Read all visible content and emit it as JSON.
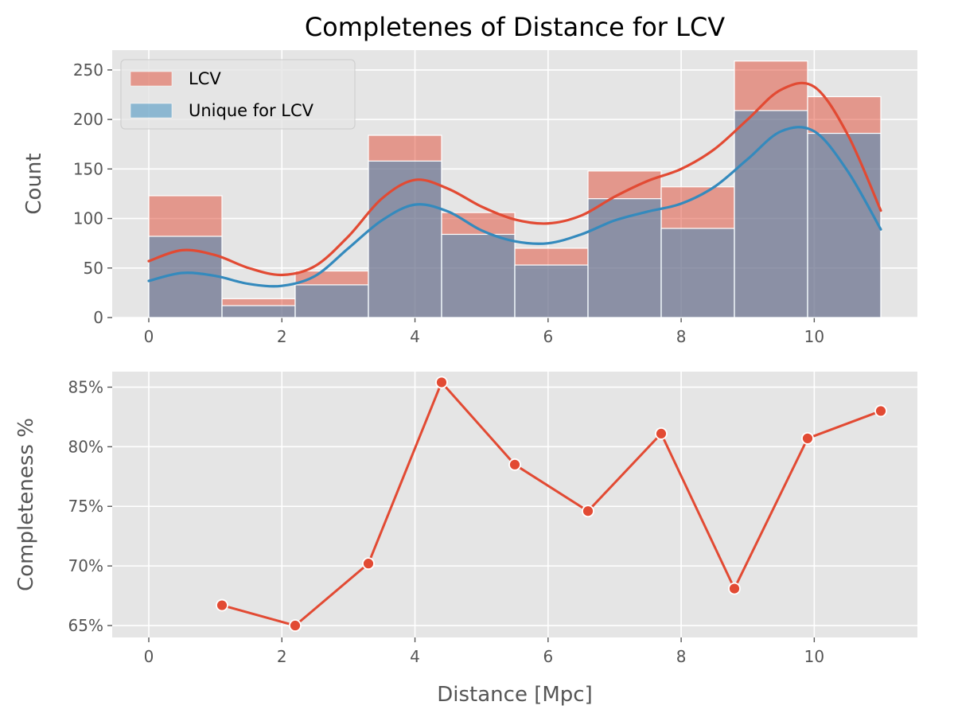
{
  "chart_data": [
    {
      "type": "bar",
      "title": "Completenes of Distance for LCV",
      "xlabel": "",
      "ylabel": "Count",
      "xlim": [
        -0.55,
        11.55
      ],
      "ylim": [
        0,
        270
      ],
      "grid": true,
      "legend_position": "top-left",
      "x_ticks": [
        0,
        2,
        4,
        6,
        8,
        10
      ],
      "x_tick_labels": [
        "0",
        "2",
        "4",
        "6",
        "8",
        "10"
      ],
      "y_ticks": [
        0,
        50,
        100,
        150,
        200,
        250
      ],
      "y_tick_labels": [
        "0",
        "50",
        "100",
        "150",
        "200",
        "250"
      ],
      "bin_edges": [
        0,
        1.1,
        2.2,
        3.3,
        4.4,
        5.5,
        6.6,
        7.7,
        8.8,
        9.9,
        11
      ],
      "series": [
        {
          "name": "LCV",
          "color": "#E24A33",
          "values": [
            123,
            19,
            47,
            184,
            106,
            70,
            148,
            132,
            259,
            223
          ],
          "kde": [
            [
              0,
              57
            ],
            [
              0.5,
              68
            ],
            [
              1,
              63
            ],
            [
              1.5,
              50
            ],
            [
              2,
              43
            ],
            [
              2.5,
              52
            ],
            [
              3,
              82
            ],
            [
              3.5,
              120
            ],
            [
              4,
              139
            ],
            [
              4.5,
              130
            ],
            [
              5,
              112
            ],
            [
              5.5,
              99
            ],
            [
              6,
              95
            ],
            [
              6.5,
              103
            ],
            [
              7,
              122
            ],
            [
              7.5,
              138
            ],
            [
              8,
              150
            ],
            [
              8.5,
              170
            ],
            [
              9,
              200
            ],
            [
              9.5,
              230
            ],
            [
              10,
              233
            ],
            [
              10.5,
              185
            ],
            [
              11,
              108
            ]
          ]
        },
        {
          "name": "Unique for LCV",
          "color": "#348ABD",
          "values": [
            82,
            12,
            33,
            158,
            84,
            53,
            120,
            90,
            209,
            186
          ],
          "kde": [
            [
              0,
              37
            ],
            [
              0.5,
              45
            ],
            [
              1,
              42
            ],
            [
              1.5,
              34
            ],
            [
              2,
              32
            ],
            [
              2.5,
              42
            ],
            [
              3,
              70
            ],
            [
              3.5,
              98
            ],
            [
              4,
              114
            ],
            [
              4.5,
              107
            ],
            [
              5,
              88
            ],
            [
              5.5,
              77
            ],
            [
              6,
              75
            ],
            [
              6.5,
              84
            ],
            [
              7,
              98
            ],
            [
              7.5,
              107
            ],
            [
              8,
              115
            ],
            [
              8.5,
              132
            ],
            [
              9,
              160
            ],
            [
              9.5,
              188
            ],
            [
              10,
              188
            ],
            [
              10.5,
              148
            ],
            [
              11,
              89
            ]
          ]
        }
      ]
    },
    {
      "type": "line",
      "title": "",
      "xlabel": "Distance [Mpc]",
      "ylabel": "Completeness %",
      "xlim": [
        -0.55,
        11.55
      ],
      "ylim": [
        64,
        86.3
      ],
      "grid": true,
      "x_ticks": [
        0,
        2,
        4,
        6,
        8,
        10
      ],
      "x_tick_labels": [
        "0",
        "2",
        "4",
        "6",
        "8",
        "10"
      ],
      "y_ticks": [
        65,
        70,
        75,
        80,
        85
      ],
      "y_tick_labels": [
        "65%",
        "70%",
        "75%",
        "80%",
        "85%"
      ],
      "series": [
        {
          "name": "",
          "color": "#E24A33",
          "x": [
            1.1,
            2.2,
            3.3,
            4.4,
            5.5,
            6.6,
            7.7,
            8.8,
            9.9,
            11.0
          ],
          "y": [
            66.7,
            65.0,
            70.2,
            85.4,
            78.5,
            74.6,
            81.1,
            68.1,
            80.7,
            83.0
          ]
        }
      ]
    }
  ]
}
